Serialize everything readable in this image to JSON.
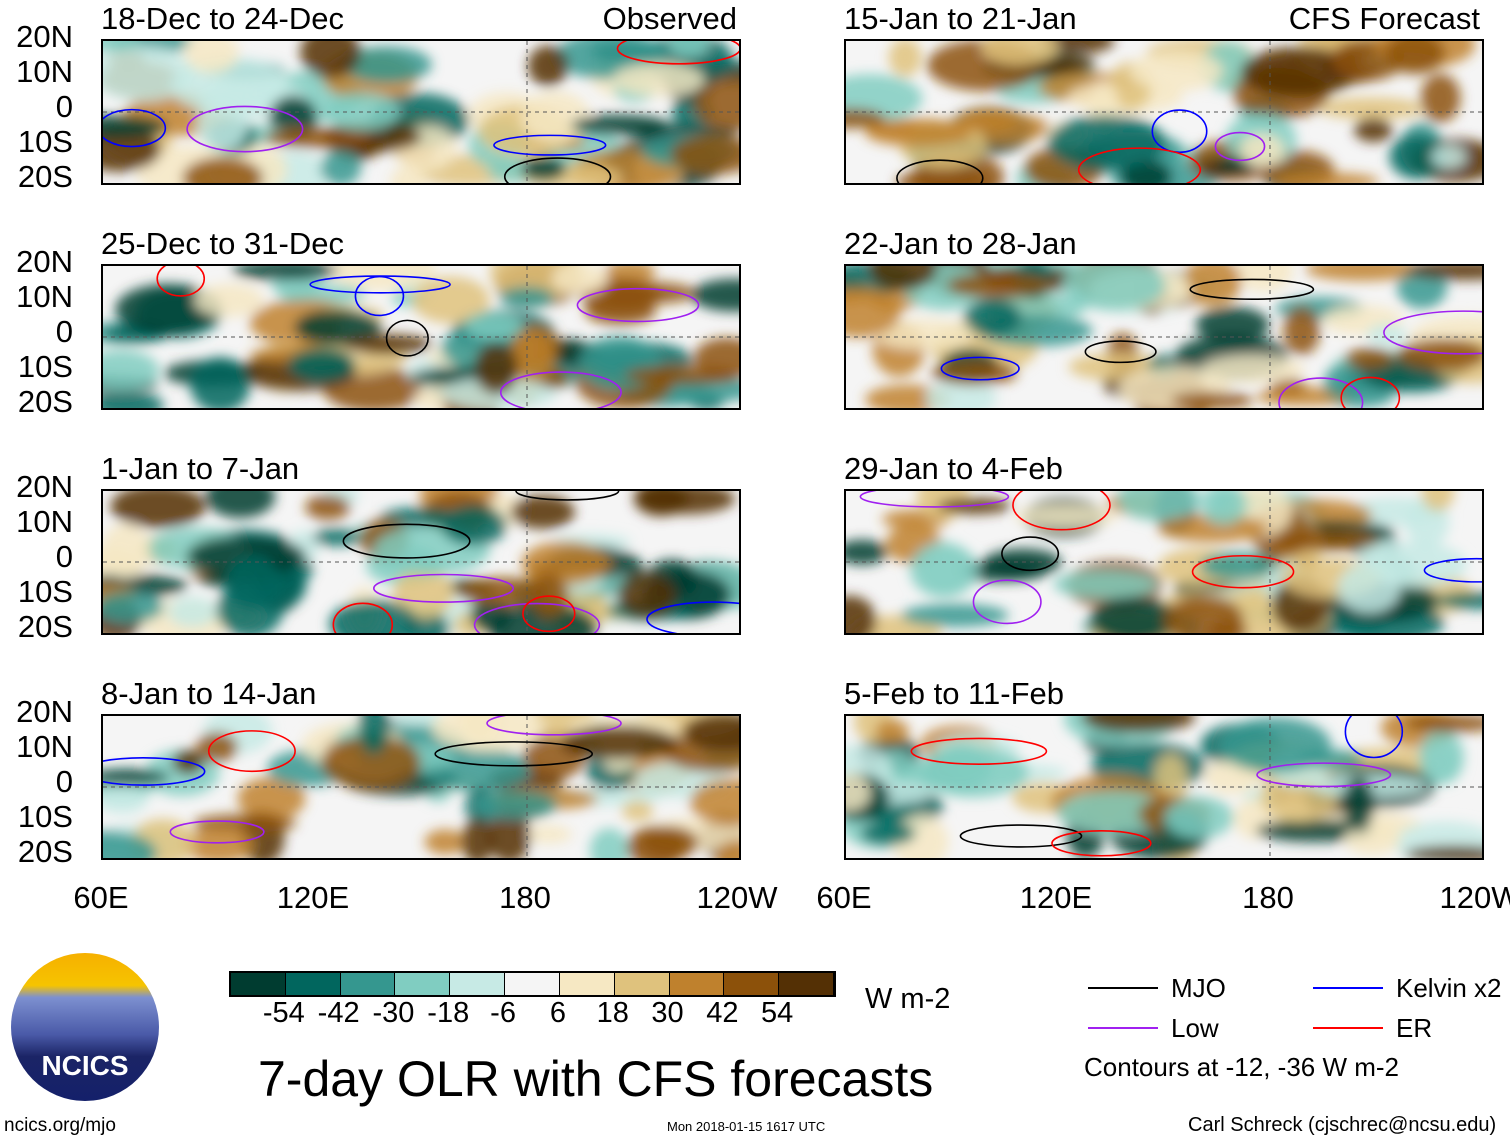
{
  "chart_data": {
    "type": "heatmap",
    "title": "7-day OLR with CFS forecasts",
    "units": "W m-2",
    "lat_ticks": [
      "20N",
      "10N",
      "0",
      "10S",
      "20S"
    ],
    "lon_ticks": [
      "60E",
      "120E",
      "180",
      "120W"
    ],
    "panels_observed_label": "Observed",
    "panels_forecast_label": "CFS Forecast",
    "panels": [
      {
        "title": "18-Dec to 24-Dec",
        "column": "left"
      },
      {
        "title": "25-Dec to 31-Dec",
        "column": "left"
      },
      {
        "title": "1-Jan to 7-Jan",
        "column": "left"
      },
      {
        "title": "8-Jan to 14-Jan",
        "column": "left"
      },
      {
        "title": "15-Jan to 21-Jan",
        "column": "right"
      },
      {
        "title": "22-Jan to 28-Jan",
        "column": "right"
      },
      {
        "title": "29-Jan to 4-Feb",
        "column": "right"
      },
      {
        "title": "5-Feb to 11-Feb",
        "column": "right"
      }
    ],
    "colorbar": {
      "labels": [
        "-54",
        "-42",
        "-30",
        "-18",
        "-6",
        "6",
        "18",
        "30",
        "42",
        "54"
      ],
      "colors": [
        "#003c30",
        "#01665e",
        "#35978f",
        "#80cdc1",
        "#c7eae5",
        "#f5f5f5",
        "#f6e8c3",
        "#dfc27d",
        "#bf812d",
        "#8c510a",
        "#543005"
      ]
    },
    "legend": [
      {
        "label": "MJO",
        "color": "#000000"
      },
      {
        "label": "Kelvin x2",
        "color": "#0000ff"
      },
      {
        "label": "Low",
        "color": "#a020f0"
      },
      {
        "label": "ER",
        "color": "#ff0000"
      }
    ],
    "contour_note": "Contours at -12, -36 W m-2"
  },
  "footer": {
    "logo_text": "NCICS",
    "url": "ncics.org/mjo",
    "timestamp": "Mon 2018-01-15 1617 UTC",
    "author": "Carl Schreck (cjschrec@ncsu.edu)"
  }
}
